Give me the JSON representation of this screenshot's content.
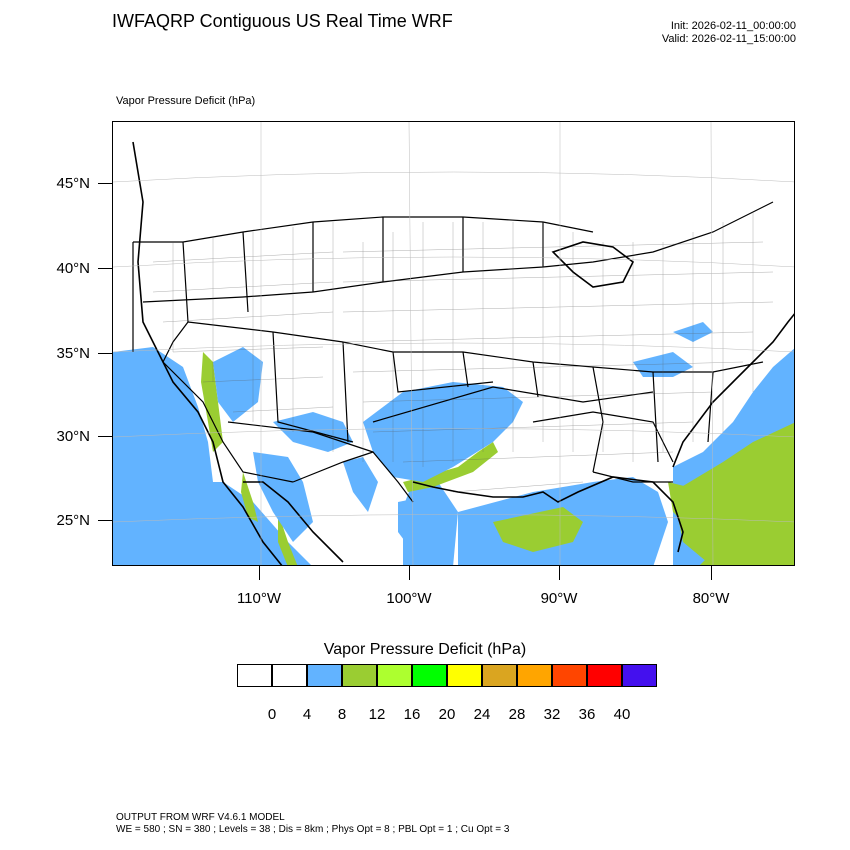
{
  "header": {
    "title": "IWFAQRP Contiguous US Real Time WRF",
    "init": "Init: 2026-02-11_00:00:00",
    "valid": "Valid: 2026-02-11_15:00:00"
  },
  "map": {
    "field_label": "Vapor Pressure Deficit   (hPa)",
    "lat_labels": [
      "45°N",
      "40°N",
      "35°N",
      "30°N",
      "25°N"
    ],
    "lon_labels": [
      "110°W",
      "100°W",
      "90°W",
      "80°W"
    ],
    "ocean_color": "#62b3ff",
    "land_color": "#ffffff"
  },
  "colorbar": {
    "title": "Vapor Pressure Deficit  (hPa)",
    "colors": [
      "#ffffff",
      "#ffffff",
      "#62b3ff",
      "#9acd32",
      "#adff2f",
      "#00ff00",
      "#ffff00",
      "#daa520",
      "#ffa500",
      "#ff4500",
      "#ff0000",
      "#4410ee"
    ],
    "labels": [
      "0",
      "4",
      "8",
      "12",
      "16",
      "20",
      "24",
      "28",
      "32",
      "36",
      "40"
    ]
  },
  "footer": {
    "line1": "OUTPUT FROM WRF V4.6.1 MODEL",
    "line2": "WE = 580 ; SN = 380 ; Levels = 38 ; Dis = 8km ; Phys Opt = 8 ; PBL Opt = 1 ; Cu Opt = 3"
  }
}
